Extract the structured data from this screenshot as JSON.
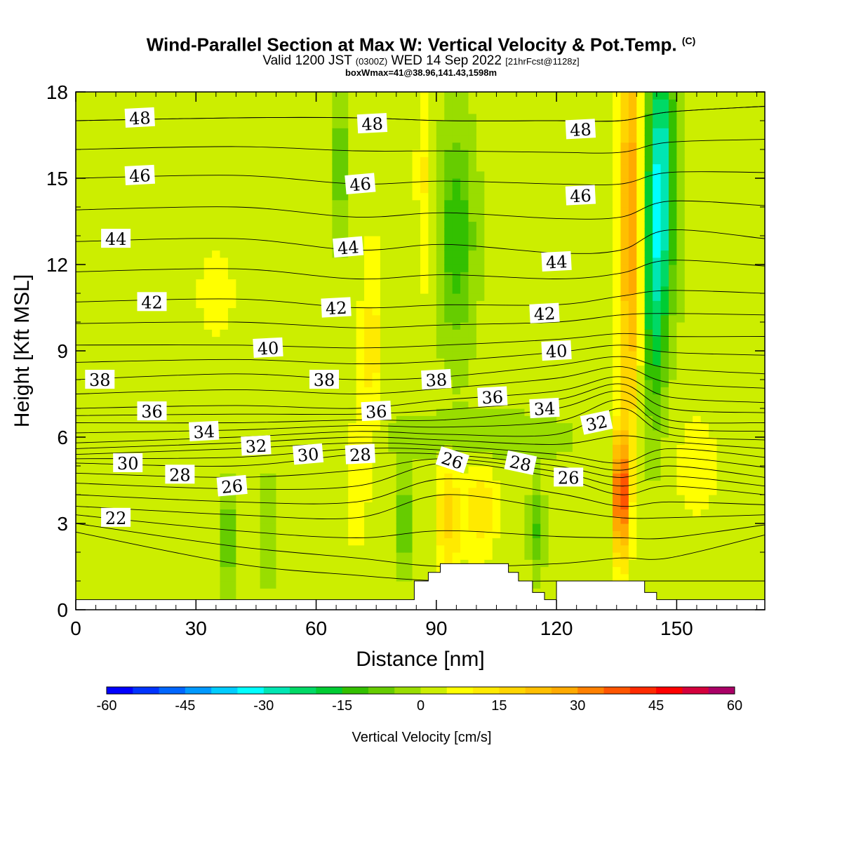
{
  "title": {
    "line1": "Wind-Parallel Section at Max W: Vertical Velocity & Pot.Temp.",
    "line1_mark": "(C)",
    "line2_a": "Valid 1200 JST",
    "line2_b": "(0300Z)",
    "line2_c": "WED 14 Sep 2022",
    "line2_d": "[21hrFcst@1128z]",
    "line3": "boxWmax=41@38.96,141.43,1598m"
  },
  "chart_data": {
    "type": "heatmap",
    "xlabel": "Distance [nm]",
    "ylabel": "Height [Kft MSL]",
    "xlim": [
      0,
      172
    ],
    "ylim": [
      0,
      18
    ],
    "x_ticks": [
      0,
      30,
      60,
      90,
      120,
      150
    ],
    "y_ticks": [
      0,
      3,
      6,
      9,
      12,
      15,
      18
    ],
    "colorbar": {
      "label": "Vertical Velocity [cm/s]",
      "ticks": [
        -60,
        -45,
        -30,
        -15,
        0,
        15,
        30,
        45,
        60
      ],
      "range": [
        -60,
        60
      ],
      "step": 5,
      "colors": [
        "#0000ff",
        "#0033ff",
        "#0066ff",
        "#0099ff",
        "#00ccff",
        "#00ffff",
        "#00e6b3",
        "#00d966",
        "#00cc33",
        "#33c000",
        "#66cc00",
        "#99dd00",
        "#ccee00",
        "#ffff00",
        "#ffea00",
        "#ffd500",
        "#ffbf00",
        "#ffaa00",
        "#ff8000",
        "#ff5500",
        "#ff2a00",
        "#ff0000",
        "#d4003c",
        "#aa0066",
        "#8000aa"
      ]
    },
    "w_features": [
      {
        "x": 136,
        "z": 4.0,
        "sx": 1.3,
        "sz": 1.5,
        "w": 42
      },
      {
        "x": 138.5,
        "z": 13.5,
        "sx": 2.0,
        "sz": 5.5,
        "w": 28
      },
      {
        "x": 146,
        "z": 15.0,
        "sx": 2.5,
        "sz": 3.5,
        "w": -32
      },
      {
        "x": 144,
        "z": 10.0,
        "sx": 2.0,
        "sz": 3.0,
        "w": -15
      },
      {
        "x": 93,
        "z": 3.2,
        "sx": 2.2,
        "sz": 1.5,
        "w": 15
      },
      {
        "x": 101,
        "z": 3.5,
        "sx": 3.0,
        "sz": 1.3,
        "w": 12
      },
      {
        "x": 74,
        "z": 9.5,
        "sx": 2.0,
        "sz": 2.5,
        "w": 10
      },
      {
        "x": 87,
        "z": 15.0,
        "sx": 1.5,
        "sz": 3.0,
        "w": 9
      },
      {
        "x": 95,
        "z": 13.0,
        "sx": 3.0,
        "sz": 2.5,
        "w": -16
      },
      {
        "x": 66,
        "z": 15.5,
        "sx": 1.5,
        "sz": 1.8,
        "w": -10
      },
      {
        "x": 38,
        "z": 2.5,
        "sx": 1.2,
        "sz": 1.2,
        "w": -14
      },
      {
        "x": 48,
        "z": 2.8,
        "sx": 1.0,
        "sz": 1.2,
        "w": -10
      },
      {
        "x": 82,
        "z": 3.0,
        "sx": 1.2,
        "sz": 1.0,
        "w": -16
      },
      {
        "x": 115,
        "z": 2.8,
        "sx": 1.2,
        "sz": 1.0,
        "w": -12
      },
      {
        "x": 100,
        "z": 6.0,
        "sx": 15.0,
        "sz": 0.6,
        "w": -6
      },
      {
        "x": 35,
        "z": 11.0,
        "sx": 8.0,
        "sz": 3.0,
        "w": 4
      },
      {
        "x": 70,
        "z": 4.5,
        "sx": 3.0,
        "sz": 3.0,
        "w": 5
      },
      {
        "x": 155,
        "z": 5.0,
        "sx": 6.0,
        "sz": 2.0,
        "w": 5
      }
    ],
    "theta_contours": {
      "interval": 1,
      "base": [
        {
          "x": 0,
          "levels": [
            [
              21,
              2.7
            ],
            [
              22,
              3.0
            ],
            [
              24,
              3.6
            ],
            [
              26,
              4.4
            ],
            [
              28,
              5.1
            ],
            [
              30,
              5.4
            ],
            [
              32,
              5.8
            ],
            [
              34,
              6.5
            ],
            [
              36,
              7.0
            ],
            [
              38,
              8.0
            ],
            [
              40,
              9.2
            ],
            [
              42,
              10.7
            ],
            [
              44,
              12.8
            ],
            [
              46,
              15.0
            ],
            [
              48,
              17.0
            ]
          ]
        },
        {
          "x": 40,
          "levels": [
            [
              21,
              1.6
            ],
            [
              22,
              2.2
            ],
            [
              24,
              3.3
            ],
            [
              26,
              4.2
            ],
            [
              28,
              5.0
            ],
            [
              30,
              5.6
            ],
            [
              32,
              6.0
            ],
            [
              34,
              6.5
            ],
            [
              36,
              7.1
            ],
            [
              38,
              8.2
            ],
            [
              40,
              9.2
            ],
            [
              42,
              10.8
            ],
            [
              44,
              12.9
            ],
            [
              46,
              15.1
            ],
            [
              48,
              17.1
            ]
          ]
        },
        {
          "x": 70,
          "levels": [
            [
              21,
              1.2
            ],
            [
              22,
              1.8
            ],
            [
              24,
              3.2
            ],
            [
              26,
              4.3
            ],
            [
              28,
              5.4
            ],
            [
              30,
              5.8
            ],
            [
              32,
              6.2
            ],
            [
              34,
              6.6
            ],
            [
              36,
              7.0
            ],
            [
              38,
              8.0
            ],
            [
              40,
              9.1
            ],
            [
              42,
              10.5
            ],
            [
              44,
              12.5
            ],
            [
              46,
              14.8
            ],
            [
              48,
              17.1
            ]
          ]
        },
        {
          "x": 92,
          "levels": [
            [
              21,
              1.0
            ],
            [
              22,
              1.5
            ],
            [
              24,
              4.0
            ],
            [
              26,
              5.1
            ],
            [
              28,
              5.4
            ],
            [
              30,
              5.7
            ],
            [
              32,
              6.1
            ],
            [
              34,
              6.6
            ],
            [
              36,
              7.3
            ],
            [
              38,
              8.1
            ],
            [
              40,
              9.2
            ],
            [
              42,
              10.6
            ],
            [
              44,
              12.7
            ],
            [
              46,
              14.9
            ],
            [
              48,
              17.0
            ]
          ]
        },
        {
          "x": 120,
          "levels": [
            [
              21,
              1.0
            ],
            [
              22,
              1.6
            ],
            [
              24,
              3.5
            ],
            [
              26,
              4.6
            ],
            [
              28,
              5.0
            ],
            [
              30,
              5.4
            ],
            [
              32,
              6.1
            ],
            [
              34,
              7.0
            ],
            [
              36,
              7.6
            ],
            [
              38,
              8.5
            ],
            [
              40,
              9.4
            ],
            [
              42,
              10.6
            ],
            [
              44,
              12.4
            ],
            [
              46,
              14.8
            ],
            [
              48,
              17.0
            ]
          ]
        },
        {
          "x": 136,
          "levels": [
            [
              21,
              1.0
            ],
            [
              22,
              1.8
            ],
            [
              24,
              3.2
            ],
            [
              26,
              4.0
            ],
            [
              28,
              4.6
            ],
            [
              30,
              5.1
            ],
            [
              32,
              7.0
            ],
            [
              34,
              7.6
            ],
            [
              36,
              8.1
            ],
            [
              38,
              8.8
            ],
            [
              40,
              9.6
            ],
            [
              42,
              10.9
            ],
            [
              44,
              12.5
            ],
            [
              46,
              14.8
            ],
            [
              48,
              17.0
            ]
          ]
        },
        {
          "x": 148,
          "levels": [
            [
              21,
              1.0
            ],
            [
              22,
              1.8
            ],
            [
              24,
              3.2
            ],
            [
              26,
              4.3
            ],
            [
              28,
              5.0
            ],
            [
              30,
              5.6
            ],
            [
              32,
              6.1
            ],
            [
              34,
              6.6
            ],
            [
              36,
              7.4
            ],
            [
              38,
              8.4
            ],
            [
              40,
              9.5
            ],
            [
              42,
              11.1
            ],
            [
              44,
              13.2
            ],
            [
              46,
              15.2
            ],
            [
              48,
              17.3
            ]
          ]
        },
        {
          "x": 172,
          "levels": [
            [
              21,
              1.0
            ],
            [
              22,
              2.6
            ],
            [
              24,
              3.3
            ],
            [
              26,
              4.0
            ],
            [
              28,
              4.6
            ],
            [
              30,
              5.3
            ],
            [
              32,
              5.9
            ],
            [
              34,
              6.5
            ],
            [
              36,
              7.2
            ],
            [
              38,
              8.2
            ],
            [
              40,
              9.5
            ],
            [
              42,
              11.0
            ],
            [
              44,
              12.9
            ],
            [
              46,
              15.2
            ],
            [
              48,
              17.5
            ]
          ]
        }
      ],
      "labels": [
        {
          "text": "48",
          "x": 16,
          "z": 17.1,
          "rot": -3
        },
        {
          "text": "48",
          "x": 74,
          "z": 16.9,
          "rot": -3
        },
        {
          "text": "48",
          "x": 126,
          "z": 16.7,
          "rot": -3
        },
        {
          "text": "46",
          "x": 16,
          "z": 15.1,
          "rot": -3
        },
        {
          "text": "46",
          "x": 71,
          "z": 14.8,
          "rot": -5
        },
        {
          "text": "46",
          "x": 126,
          "z": 14.4,
          "rot": -3
        },
        {
          "text": "44",
          "x": 10,
          "z": 12.9,
          "rot": 0
        },
        {
          "text": "44",
          "x": 68,
          "z": 12.6,
          "rot": -5
        },
        {
          "text": "44",
          "x": 120,
          "z": 12.1,
          "rot": -3
        },
        {
          "text": "42",
          "x": 19,
          "z": 10.7,
          "rot": 0
        },
        {
          "text": "42",
          "x": 65,
          "z": 10.5,
          "rot": -3
        },
        {
          "text": "42",
          "x": 117,
          "z": 10.3,
          "rot": -3
        },
        {
          "text": "40",
          "x": 48,
          "z": 9.1,
          "rot": -3
        },
        {
          "text": "40",
          "x": 120,
          "z": 9.0,
          "rot": -3
        },
        {
          "text": "38",
          "x": 6,
          "z": 8.0,
          "rot": 0
        },
        {
          "text": "38",
          "x": 62,
          "z": 8.0,
          "rot": 0
        },
        {
          "text": "38",
          "x": 90,
          "z": 8.0,
          "rot": -3
        },
        {
          "text": "36",
          "x": 19,
          "z": 6.9,
          "rot": 0
        },
        {
          "text": "36",
          "x": 104,
          "z": 7.4,
          "rot": -3
        },
        {
          "text": "36",
          "x": 75,
          "z": 6.9,
          "rot": -3
        },
        {
          "text": "34",
          "x": 32,
          "z": 6.2,
          "rot": -3
        },
        {
          "text": "34",
          "x": 117,
          "z": 7.0,
          "rot": -3
        },
        {
          "text": "32",
          "x": 45,
          "z": 5.7,
          "rot": -3
        },
        {
          "text": "32",
          "x": 130,
          "z": 6.5,
          "rot": -12
        },
        {
          "text": "30",
          "x": 13,
          "z": 5.1,
          "rot": 0
        },
        {
          "text": "30",
          "x": 58,
          "z": 5.4,
          "rot": -5
        },
        {
          "text": "28",
          "x": 26,
          "z": 4.7,
          "rot": 0
        },
        {
          "text": "28",
          "x": 71,
          "z": 5.4,
          "rot": -3
        },
        {
          "text": "28",
          "x": 111,
          "z": 5.1,
          "rot": 12
        },
        {
          "text": "26",
          "x": 39,
          "z": 4.3,
          "rot": -5
        },
        {
          "text": "26",
          "x": 94,
          "z": 5.2,
          "rot": 18
        },
        {
          "text": "26",
          "x": 123,
          "z": 4.6,
          "rot": 0
        },
        {
          "text": "22",
          "x": 10,
          "z": 3.2,
          "rot": 0
        }
      ]
    },
    "terrain": {
      "note_units": "x in nm, z in Kft",
      "steps": [
        [
          0,
          0.35
        ],
        [
          84.5,
          0.35
        ],
        [
          84.5,
          1.0
        ],
        [
          88,
          1.0
        ],
        [
          88,
          1.3
        ],
        [
          91,
          1.3
        ],
        [
          91,
          1.6
        ],
        [
          108,
          1.6
        ],
        [
          108,
          1.3
        ],
        [
          110.5,
          1.3
        ],
        [
          110.5,
          1.0
        ],
        [
          114,
          1.0
        ],
        [
          114,
          0.6
        ],
        [
          117,
          0.6
        ],
        [
          117,
          0.35
        ],
        [
          120,
          0.35
        ],
        [
          120,
          1.0
        ],
        [
          142,
          1.0
        ],
        [
          142,
          0.6
        ],
        [
          145,
          0.6
        ],
        [
          145,
          0.35
        ],
        [
          172,
          0.35
        ]
      ]
    }
  }
}
